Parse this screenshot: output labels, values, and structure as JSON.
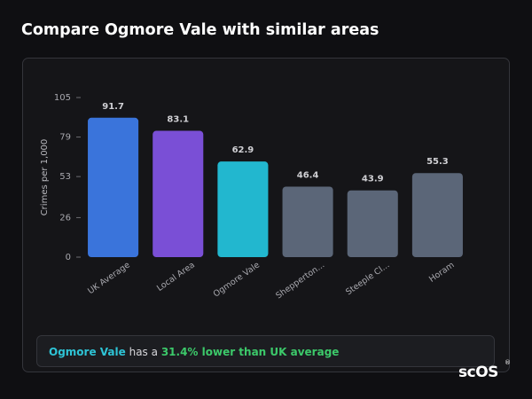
{
  "header": {
    "title": "Compare Ogmore Vale with similar areas"
  },
  "chart_data": {
    "type": "bar",
    "y_label": "Crimes per 1,000",
    "categories": [
      "UK Average",
      "Local Area",
      "Ogmore Vale",
      "Shepperton...",
      "Steeple Cl...",
      "Horam"
    ],
    "values": [
      91.7,
      83.1,
      62.9,
      46.4,
      43.9,
      55.3
    ],
    "colors": [
      "#3a74db",
      "#7a4fd6",
      "#22b7cf",
      "#5b6678",
      "#5b6678",
      "#5b6678"
    ],
    "ylim": [
      0,
      105
    ],
    "yticks": [
      0,
      26,
      53,
      79,
      105
    ],
    "grid": false
  },
  "summary": {
    "area": "Ogmore Vale",
    "text": "has a",
    "highlight": "31.4% lower than UK average"
  },
  "logo": {
    "text": "scOS",
    "mark": "®"
  }
}
